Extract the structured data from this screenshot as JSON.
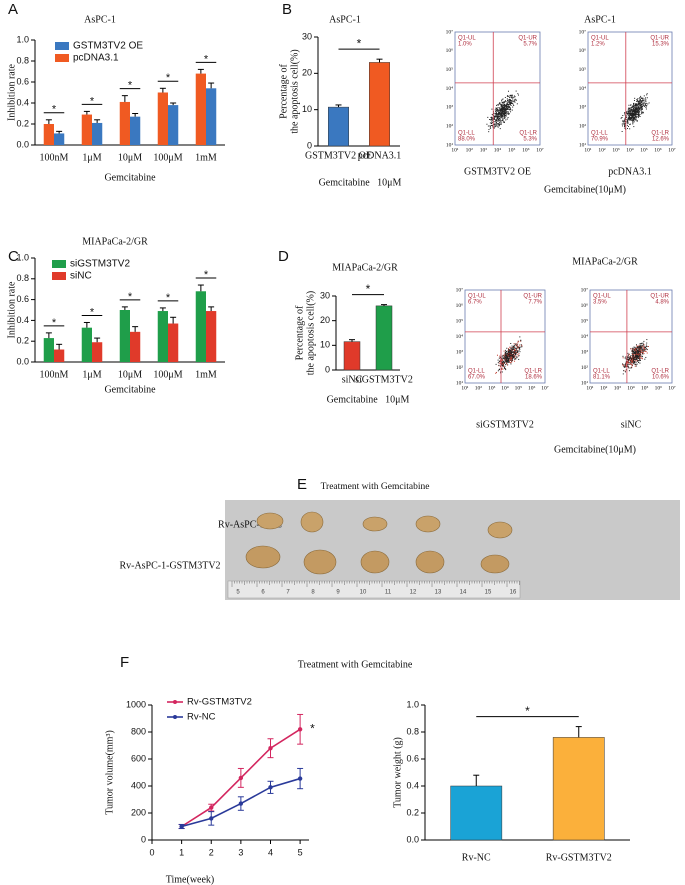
{
  "panel_labels": [
    "A",
    "B",
    "C",
    "D",
    "E",
    "F"
  ],
  "chart_data": [
    {
      "type": "grouped_bar",
      "title": "AsPC-1",
      "x_label": "Gemcitabine",
      "y_label": "Inhibition rate",
      "categories": [
        "100nM",
        "1μM",
        "10μM",
        "100μM",
        "1mM"
      ],
      "series": [
        {
          "name": "GSTM3TV2 OE",
          "color": "#3a78c0",
          "values": [
            0.11,
            0.21,
            0.27,
            0.38,
            0.54
          ],
          "errors": [
            0.02,
            0.03,
            0.03,
            0.02,
            0.05
          ]
        },
        {
          "name": "pcDNA3.1",
          "color": "#f05a22",
          "values": [
            0.2,
            0.29,
            0.41,
            0.5,
            0.68
          ],
          "errors": [
            0.04,
            0.03,
            0.06,
            0.04,
            0.04
          ]
        }
      ],
      "ylim": [
        0,
        1
      ],
      "yticks": [
        {
          "value": 0,
          "label": "0.0"
        },
        0.2,
        0.4,
        0.6,
        0.8,
        {
          "value": 1,
          "label": "1.0"
        }
      ],
      "significance": "*"
    },
    {
      "type": "bar",
      "title": "AsPC-1",
      "x_label": "Gemcitabine   10μM",
      "y_label": [
        "Percentage of",
        "the apoptosis cell(%)"
      ],
      "categories": [
        "GSTM3TV2 OE",
        "pcDNA3.1"
      ],
      "values": [
        10.7,
        23
      ],
      "errors": [
        0.6,
        0.9
      ],
      "colors": [
        "#3a78c0",
        "#f05a22"
      ],
      "ylim": [
        0,
        30
      ],
      "yticks": [
        0,
        10,
        20,
        30
      ],
      "significance": "*"
    },
    {
      "type": "grouped_bar",
      "title": "MIAPaCa-2/GR",
      "x_label": "Gemcitabine",
      "y_label": "Inhibition rate",
      "categories": [
        "100nM",
        "1μM",
        "10μM",
        "100μM",
        "1mM"
      ],
      "series": [
        {
          "name": "siGSTM3TV2",
          "color": "#1f9e4a",
          "values": [
            0.23,
            0.33,
            0.5,
            0.49,
            0.68
          ],
          "errors": [
            0.05,
            0.05,
            0.03,
            0.03,
            0.06
          ]
        },
        {
          "name": "siNC",
          "color": "#e03a2a",
          "values": [
            0.12,
            0.19,
            0.29,
            0.37,
            0.49
          ],
          "errors": [
            0.05,
            0.04,
            0.05,
            0.06,
            0.04
          ]
        }
      ],
      "ylim": [
        0,
        1
      ],
      "yticks": [
        {
          "value": 0,
          "label": "0.0"
        },
        0.2,
        0.4,
        0.6,
        0.8,
        {
          "value": 1,
          "label": "1.0"
        }
      ],
      "significance": "*"
    },
    {
      "type": "bar",
      "title": "MIAPaCa-2/GR",
      "x_label": "Gemcitabine   10μM",
      "y_label": [
        "Percentage of",
        "the apoptosis cell(%)"
      ],
      "categories": [
        "siNC",
        "siGSTM3TV2"
      ],
      "values": [
        11.5,
        26
      ],
      "errors": [
        0.8,
        0.5
      ],
      "colors": [
        "#e03a2a",
        "#1f9e4a"
      ],
      "ylim": [
        0,
        30
      ],
      "yticks": [
        0,
        10,
        20,
        30
      ],
      "significance": "*"
    },
    {
      "type": "line",
      "title": "Treatment with Gemcitabine",
      "x_label": "Time(week)",
      "y_label": "Tumor volume(mm³)",
      "x": [
        1,
        2,
        3,
        4,
        5
      ],
      "series": [
        {
          "name": "Rv-GSTM3TV2",
          "color": "#d3265f",
          "values": [
            100,
            240,
            460,
            680,
            820
          ],
          "errors": [
            15,
            25,
            70,
            70,
            110
          ]
        },
        {
          "name": "Rv-NC",
          "color": "#2a3a9a",
          "values": [
            100,
            160,
            270,
            390,
            455
          ],
          "errors": [
            15,
            50,
            50,
            45,
            75
          ]
        }
      ],
      "xlim": [
        0,
        5.3
      ],
      "xticks": [
        0,
        1,
        2,
        3,
        4,
        5
      ],
      "ylim": [
        0,
        1000
      ],
      "yticks": [
        0,
        200,
        400,
        600,
        800,
        1000
      ],
      "significance": "*"
    },
    {
      "type": "bar",
      "y_label": "Tumor weight (g)",
      "categories": [
        "Rv-NC",
        "Rv-GSTM3TV2"
      ],
      "values": [
        0.4,
        0.76
      ],
      "errors": [
        0.08,
        0.08
      ],
      "colors": [
        "#1aa3d6",
        "#fbb03b"
      ],
      "ylim": [
        0,
        1
      ],
      "yticks": [
        {
          "value": 0,
          "label": "0.0"
        },
        0.2,
        0.4,
        0.6,
        0.8,
        {
          "value": 1,
          "label": "1.0"
        }
      ],
      "significance": "*"
    }
  ],
  "flow_cytometry": [
    {
      "title": "AsPC-1",
      "caption": "Gemcitabine(10μM)",
      "plots": [
        {
          "label": "GSTM3TV2 OE",
          "quadrants": [
            [
              "Q1-UL",
              "1.0%"
            ],
            [
              "Q1-UR",
              "5.7%"
            ],
            [
              "Q1-LL",
              "88.0%"
            ],
            [
              "Q1-LR",
              "5.3%"
            ]
          ]
        },
        {
          "label": "pcDNA3.1",
          "quadrants": [
            [
              "Q1-UL",
              "1.2%"
            ],
            [
              "Q1-UR",
              "15.3%"
            ],
            [
              "Q1-LL",
              "70.9%"
            ],
            [
              "Q1-LR",
              "12.6%"
            ]
          ]
        }
      ]
    },
    {
      "title": "MIAPaCa-2/GR",
      "caption": "Gemcitabine(10μM)",
      "plots": [
        {
          "label": "siGSTM3TV2",
          "quadrants": [
            [
              "Q1-UL",
              "6.7%"
            ],
            [
              "Q1-UR",
              "7.7%"
            ],
            [
              "Q1-LL",
              "67.0%"
            ],
            [
              "Q1-LR",
              "18.6%"
            ]
          ]
        },
        {
          "label": "siNC",
          "quadrants": [
            [
              "Q1-UL",
              "3.5%"
            ],
            [
              "Q1-UR",
              "4.8%"
            ],
            [
              "Q1-LL",
              "81.1%"
            ],
            [
              "Q1-LR",
              "10.6%"
            ]
          ]
        }
      ]
    }
  ],
  "flow_axis_ticks": [
    "10¹",
    "10²",
    "10³",
    "10⁴",
    "10⁵",
    "10⁶",
    "10⁷"
  ],
  "tumor_photo": {
    "title": "Treatment with Gemcitabine",
    "rows": [
      "Rv-AsPC-1-NC",
      "Rv-AsPC-1-GSTM3TV2"
    ],
    "ruler_labels": [
      5,
      6,
      7,
      8,
      9,
      10,
      11,
      12,
      13,
      14,
      15,
      16
    ]
  }
}
